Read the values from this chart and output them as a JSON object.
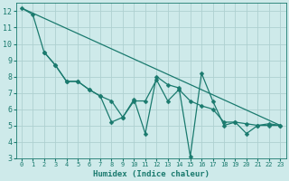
{
  "xlabel": "Humidex (Indice chaleur)",
  "background_color": "#ceeaea",
  "grid_color": "#aed0d0",
  "line_color": "#1a7a6e",
  "markersize": 2.5,
  "linewidth": 0.9,
  "xlim": [
    -0.5,
    23.5
  ],
  "ylim": [
    3,
    12.5
  ],
  "xticks": [
    0,
    1,
    2,
    3,
    4,
    5,
    6,
    7,
    8,
    9,
    10,
    11,
    12,
    13,
    14,
    15,
    16,
    17,
    18,
    19,
    20,
    21,
    22,
    23
  ],
  "yticks": [
    3,
    4,
    5,
    6,
    7,
    8,
    9,
    10,
    11,
    12
  ],
  "series1_x": [
    0,
    1,
    2,
    3,
    4,
    5,
    6,
    7,
    8,
    9,
    10,
    11,
    12,
    13,
    14,
    15,
    16,
    17,
    18,
    19,
    20,
    21,
    22,
    23
  ],
  "series1_y": [
    12.2,
    11.8,
    9.5,
    8.7,
    7.7,
    7.7,
    7.2,
    6.8,
    5.2,
    5.5,
    6.5,
    6.5,
    7.8,
    6.5,
    7.2,
    6.5,
    6.2,
    6.0,
    5.2,
    5.2,
    5.1,
    5.0,
    5.0,
    5.0
  ],
  "series2_x": [
    2,
    3,
    4,
    5,
    6,
    7,
    8,
    9,
    10,
    11,
    12,
    13,
    14,
    15,
    16,
    17,
    18,
    19,
    20,
    21,
    22,
    23
  ],
  "series2_y": [
    9.5,
    8.7,
    7.7,
    7.7,
    7.2,
    6.8,
    6.5,
    5.5,
    6.6,
    4.5,
    8.0,
    7.5,
    7.3,
    3.1,
    8.2,
    6.5,
    5.0,
    5.2,
    4.5,
    5.0,
    5.1,
    5.0
  ],
  "trend_x": [
    0,
    23
  ],
  "trend_y": [
    12.2,
    5.0
  ]
}
